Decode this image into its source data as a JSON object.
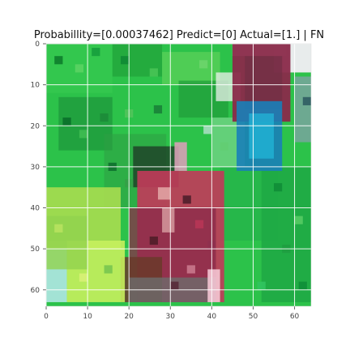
{
  "chart_data": {
    "type": "heatmap",
    "title": "Probabillity=[0.00037462] Predict=[0] Actual=[1.] | FN",
    "xlabel": "",
    "ylabel": "",
    "xlim": [
      0,
      64
    ],
    "ylim": [
      64,
      0
    ],
    "x_ticks": [
      0,
      10,
      20,
      30,
      40,
      50,
      60
    ],
    "y_ticks": [
      0,
      10,
      20,
      30,
      40,
      50,
      60
    ],
    "x_tick_labels": [
      "0",
      "10",
      "20",
      "30",
      "40",
      "50",
      "60"
    ],
    "y_tick_labels": [
      "0",
      "10",
      "20",
      "30",
      "40",
      "50",
      "60"
    ],
    "grid": true,
    "image_content": "64x64 pixelated RGB image: mostly green foliage, person in red/maroon clothing at center-bottom, blue/teal clothing at upper right, yellow-green area at lower left"
  },
  "colors": {
    "green": "#2cc24a",
    "dark_green": "#1a8a3a",
    "light_green": "#a8dd50",
    "maroon": "#8a2a4a",
    "red": "#c23a5a",
    "blue": "#1a7fb8",
    "white": "#f5f5f5",
    "gray": "#6d6d6d",
    "brown": "#6a3a2a"
  }
}
